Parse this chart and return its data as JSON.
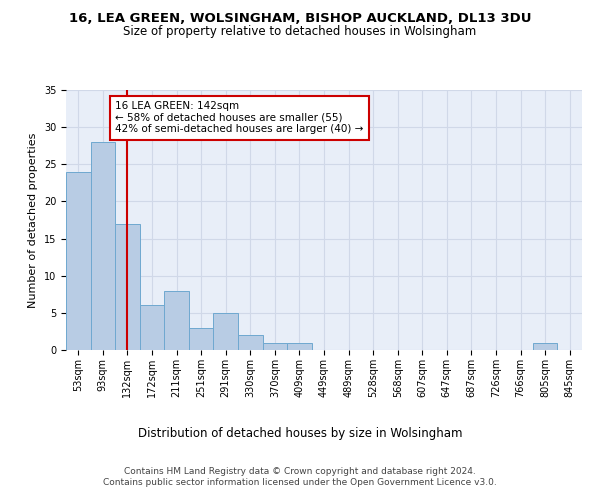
{
  "title1": "16, LEA GREEN, WOLSINGHAM, BISHOP AUCKLAND, DL13 3DU",
  "title2": "Size of property relative to detached houses in Wolsingham",
  "xlabel": "Distribution of detached houses by size in Wolsingham",
  "ylabel": "Number of detached properties",
  "categories": [
    "53sqm",
    "93sqm",
    "132sqm",
    "172sqm",
    "211sqm",
    "251sqm",
    "291sqm",
    "330sqm",
    "370sqm",
    "409sqm",
    "449sqm",
    "489sqm",
    "528sqm",
    "568sqm",
    "607sqm",
    "647sqm",
    "687sqm",
    "726sqm",
    "766sqm",
    "805sqm",
    "845sqm"
  ],
  "values": [
    24,
    28,
    17,
    6,
    8,
    3,
    5,
    2,
    1,
    1,
    0,
    0,
    0,
    0,
    0,
    0,
    0,
    0,
    0,
    1,
    0
  ],
  "bar_color": "#b8cce4",
  "bar_edge_color": "#6fa8d0",
  "vline_x": 2,
  "vline_color": "#cc0000",
  "annotation_text": "16 LEA GREEN: 142sqm\n← 58% of detached houses are smaller (55)\n42% of semi-detached houses are larger (40) →",
  "annotation_box_color": "#ffffff",
  "annotation_box_edge": "#cc0000",
  "ylim": [
    0,
    35
  ],
  "yticks": [
    0,
    5,
    10,
    15,
    20,
    25,
    30,
    35
  ],
  "grid_color": "#d0d8e8",
  "background_color": "#e8eef8",
  "footer_text": "Contains HM Land Registry data © Crown copyright and database right 2024.\nContains public sector information licensed under the Open Government Licence v3.0.",
  "title_fontsize": 9.5,
  "subtitle_fontsize": 8.5,
  "xlabel_fontsize": 8.5,
  "ylabel_fontsize": 8,
  "tick_fontsize": 7,
  "annotation_fontsize": 7.5,
  "footer_fontsize": 6.5
}
